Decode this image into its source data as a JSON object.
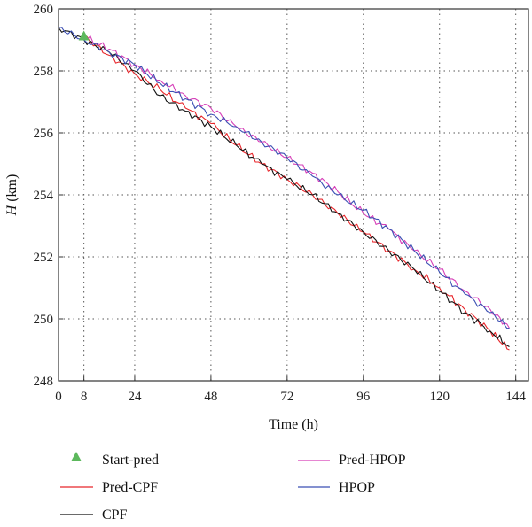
{
  "chart_data": {
    "type": "line",
    "xlabel": "Time (h)",
    "ylabel_italic": "H",
    "ylabel_unit": " (km)",
    "xlim": [
      0,
      148
    ],
    "ylim": [
      248,
      260
    ],
    "xticks": [
      0,
      8,
      24,
      48,
      72,
      96,
      120,
      144
    ],
    "yticks": [
      248,
      250,
      252,
      254,
      256,
      258,
      260
    ],
    "grid": true,
    "start_marker": {
      "name": "Start-pred",
      "x": 8,
      "y": 259.1,
      "color": "#5cb85c"
    },
    "series": [
      {
        "name": "Pred-CPF",
        "color": "#e8262b",
        "x": [
          8,
          16,
          24,
          32,
          40,
          48,
          56,
          64,
          72,
          80,
          88,
          96,
          104,
          112,
          120,
          128,
          136,
          142
        ],
        "y": [
          259.1,
          258.5,
          257.9,
          257.4,
          256.8,
          256.3,
          255.6,
          255.0,
          254.5,
          254.0,
          253.4,
          252.8,
          252.2,
          251.6,
          251.0,
          250.3,
          249.6,
          249.0
        ]
      },
      {
        "name": "CPF",
        "color": "#111111",
        "x": [
          0,
          8,
          16,
          24,
          32,
          40,
          48,
          56,
          64,
          72,
          80,
          88,
          96,
          104,
          112,
          120,
          128,
          136,
          142
        ],
        "y": [
          259.4,
          259.0,
          258.6,
          258.0,
          257.2,
          256.7,
          256.2,
          255.6,
          255.0,
          254.5,
          254.0,
          253.4,
          252.8,
          252.2,
          251.6,
          250.9,
          250.2,
          249.6,
          249.1
        ]
      },
      {
        "name": "Pred-HPOP",
        "color": "#d63fb8",
        "x": [
          8,
          16,
          24,
          32,
          40,
          48,
          56,
          64,
          72,
          80,
          88,
          96,
          104,
          112,
          120,
          128,
          136,
          142
        ],
        "y": [
          259.1,
          258.7,
          258.2,
          257.7,
          257.2,
          256.8,
          256.2,
          255.7,
          255.2,
          254.7,
          254.1,
          253.4,
          252.9,
          252.2,
          251.6,
          250.9,
          250.3,
          249.7
        ]
      },
      {
        "name": "HPOP",
        "color": "#3b4fb3",
        "x": [
          0,
          8,
          16,
          24,
          32,
          40,
          48,
          56,
          64,
          72,
          80,
          88,
          96,
          104,
          112,
          120,
          128,
          136,
          142
        ],
        "y": [
          259.4,
          259.0,
          258.6,
          258.2,
          257.6,
          257.1,
          256.6,
          256.2,
          255.7,
          255.2,
          254.6,
          254.0,
          253.5,
          252.9,
          252.2,
          251.5,
          250.8,
          250.2,
          249.7
        ]
      }
    ]
  }
}
